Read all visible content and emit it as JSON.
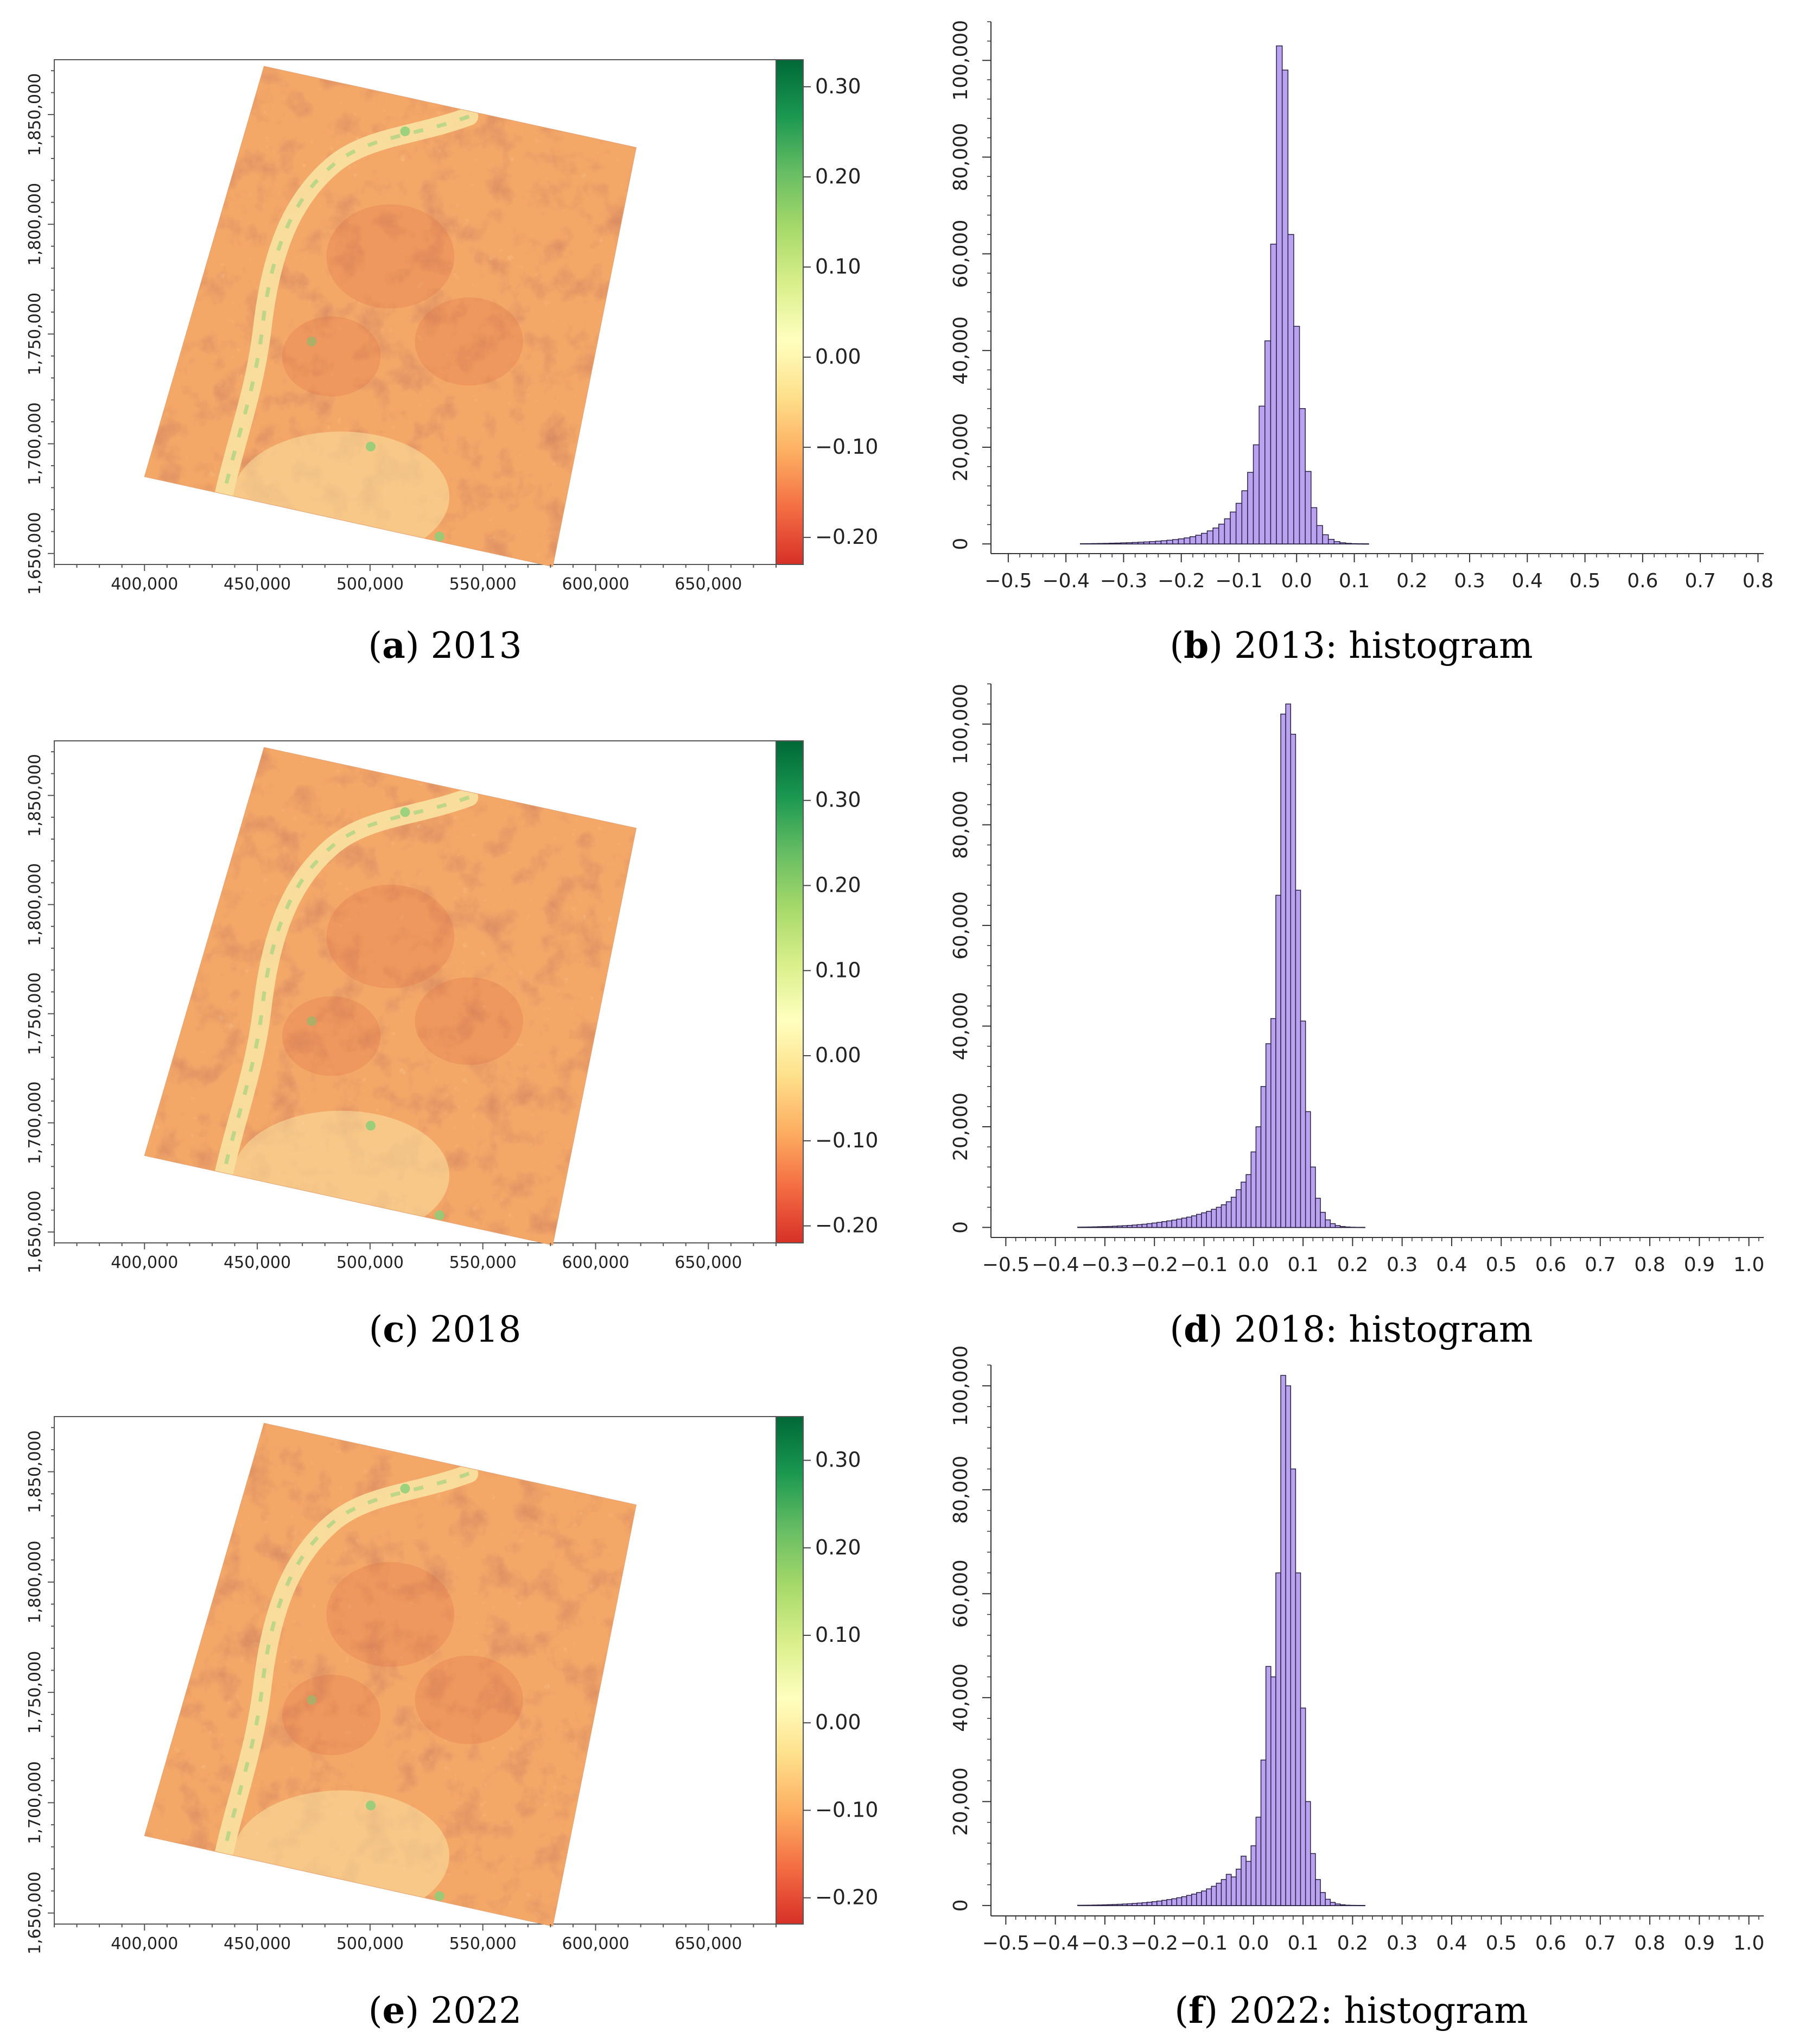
{
  "figure": {
    "panels": [
      {
        "id": "a",
        "kind": "map",
        "label": "a",
        "caption": "2013",
        "colorbar": {
          "ticks": [
            "0.30",
            "0.20",
            "0.10",
            "0.00",
            "−0.10",
            "−0.20"
          ],
          "tick_values": [
            0.3,
            0.2,
            0.1,
            0.0,
            -0.1,
            -0.2
          ],
          "range": [
            -0.23,
            0.33
          ]
        },
        "x_ticks": [
          "400,000",
          "450,000",
          "500,000",
          "550,000",
          "600,000",
          "650,000"
        ],
        "y_ticks": [
          "1,650,000",
          "1,700,000",
          "1,750,000",
          "1,800,000",
          "1,850,000"
        ]
      },
      {
        "id": "b",
        "kind": "histogram",
        "label": "b",
        "caption": "2013: histogram",
        "x_ticks": [
          "−0.5",
          "−0.4",
          "−0.3",
          "−0.2",
          "−0.1",
          "0.0",
          "0.1",
          "0.2",
          "0.3",
          "0.4",
          "0.5",
          "0.6",
          "0.7",
          "0.8"
        ],
        "y_ticks": [
          "0",
          "20,000",
          "40,000",
          "60,000",
          "80,000",
          "100,000"
        ]
      },
      {
        "id": "c",
        "kind": "map",
        "label": "c",
        "caption": "2018",
        "colorbar": {
          "ticks": [
            "0.30",
            "0.20",
            "0.10",
            "0.00",
            "−0.10",
            "−0.20"
          ],
          "tick_values": [
            0.3,
            0.2,
            0.1,
            0.0,
            -0.1,
            -0.2
          ],
          "range": [
            -0.22,
            0.37
          ]
        },
        "x_ticks": [
          "400,000",
          "450,000",
          "500,000",
          "550,000",
          "600,000",
          "650,000"
        ],
        "y_ticks": [
          "1,650,000",
          "1,700,000",
          "1,750,000",
          "1,800,000",
          "1,850,000"
        ]
      },
      {
        "id": "d",
        "kind": "histogram",
        "label": "d",
        "caption": "2018: histogram",
        "x_ticks": [
          "−0.5",
          "−0.4",
          "−0.3",
          "−0.2",
          "−0.1",
          "0.0",
          "0.1",
          "0.2",
          "0.3",
          "0.4",
          "0.5",
          "0.6",
          "0.7",
          "0.8",
          "0.9",
          "1.0"
        ],
        "y_ticks": [
          "0",
          "20,000",
          "40,000",
          "60,000",
          "80,000",
          "100,000"
        ]
      },
      {
        "id": "e",
        "kind": "map",
        "label": "e",
        "caption": "2022",
        "colorbar": {
          "ticks": [
            "0.30",
            "0.20",
            "0.10",
            "0.00",
            "−0.10",
            "−0.20"
          ],
          "tick_values": [
            0.3,
            0.2,
            0.1,
            0.0,
            -0.1,
            -0.2
          ],
          "range": [
            -0.23,
            0.35
          ]
        },
        "x_ticks": [
          "400,000",
          "450,000",
          "500,000",
          "550,000",
          "600,000",
          "650,000"
        ],
        "y_ticks": [
          "1,650,000",
          "1,700,000",
          "1,750,000",
          "1,800,000",
          "1,850,000"
        ]
      },
      {
        "id": "f",
        "kind": "histogram",
        "label": "f",
        "caption": "2022: histogram",
        "x_ticks": [
          "−0.5",
          "−0.4",
          "−0.3",
          "−0.2",
          "−0.1",
          "0.0",
          "0.1",
          "0.2",
          "0.3",
          "0.4",
          "0.5",
          "0.6",
          "0.7",
          "0.8",
          "0.9",
          "1.0"
        ],
        "y_ticks": [
          "0",
          "20,000",
          "40,000",
          "60,000",
          "80,000",
          "100,000"
        ]
      }
    ]
  },
  "colors": {
    "histogram_fill": "#b9a3f0",
    "histogram_stroke": "#2a2145",
    "ramp": [
      "#d73027",
      "#f46d43",
      "#fdae61",
      "#fee08b",
      "#ffffbf",
      "#d9ef8b",
      "#a6d96a",
      "#66bd63",
      "#1a9850",
      "#006837"
    ],
    "raster_base": "#f4a868",
    "raster_dark": "#dd6a44",
    "raster_light": "#f9e2a2",
    "raster_green": "#8ccf78"
  },
  "chart_data": [
    {
      "panel": "a",
      "type": "heatmap",
      "title": "2013",
      "xlabel": "",
      "ylabel": "",
      "x_ticks": [
        400000,
        450000,
        500000,
        550000,
        600000,
        650000
      ],
      "xlim": [
        360000,
        680000
      ],
      "y_ticks": [
        1650000,
        1700000,
        1750000,
        1800000,
        1850000
      ],
      "ylim": [
        1645000,
        1875000
      ],
      "colorbar_range": [
        -0.23,
        0.33
      ],
      "colorbar_ticks": [
        -0.2,
        -0.1,
        0.0,
        0.1,
        0.2,
        0.3
      ],
      "footprint_corners": [
        [
          400000,
          1685000
        ],
        [
          453000,
          1872000
        ],
        [
          618000,
          1835000
        ],
        [
          581000,
          1644000
        ]
      ]
    },
    {
      "panel": "b",
      "type": "bar",
      "title": "2013: histogram",
      "xlabel": "",
      "ylabel": "",
      "xlim": [
        -0.53,
        0.81
      ],
      "ylim": [
        -2000,
        108000
      ],
      "bin_width": 0.01,
      "x": [
        -0.37,
        -0.36,
        -0.35,
        -0.34,
        -0.33,
        -0.32,
        -0.31,
        -0.3,
        -0.29,
        -0.28,
        -0.27,
        -0.26,
        -0.25,
        -0.24,
        -0.23,
        -0.22,
        -0.21,
        -0.2,
        -0.19,
        -0.18,
        -0.17,
        -0.16,
        -0.15,
        -0.14,
        -0.13,
        -0.12,
        -0.11,
        -0.1,
        -0.09,
        -0.08,
        -0.07,
        -0.06,
        -0.05,
        -0.04,
        -0.03,
        -0.02,
        -0.01,
        0.0,
        0.01,
        0.02,
        0.03,
        0.04,
        0.05,
        0.06,
        0.07,
        0.08,
        0.09,
        0.1,
        0.11,
        0.12
      ],
      "values": [
        50,
        60,
        80,
        100,
        120,
        150,
        180,
        220,
        260,
        310,
        360,
        420,
        490,
        570,
        660,
        770,
        900,
        1050,
        1250,
        1500,
        1800,
        2200,
        2700,
        3300,
        4100,
        5200,
        6600,
        8400,
        11000,
        14800,
        20500,
        28500,
        42000,
        62000,
        103000,
        98000,
        64000,
        45000,
        28000,
        15000,
        7500,
        3800,
        1900,
        950,
        480,
        240,
        120,
        60,
        30,
        10
      ]
    },
    {
      "panel": "c",
      "type": "heatmap",
      "title": "2018",
      "xlabel": "",
      "ylabel": "",
      "x_ticks": [
        400000,
        450000,
        500000,
        550000,
        600000,
        650000
      ],
      "xlim": [
        360000,
        680000
      ],
      "y_ticks": [
        1650000,
        1700000,
        1750000,
        1800000,
        1850000
      ],
      "ylim": [
        1645000,
        1875000
      ],
      "colorbar_range": [
        -0.22,
        0.37
      ],
      "colorbar_ticks": [
        -0.2,
        -0.1,
        0.0,
        0.1,
        0.2,
        0.3
      ],
      "footprint_corners": [
        [
          400000,
          1685000
        ],
        [
          453000,
          1872000
        ],
        [
          618000,
          1835000
        ],
        [
          581000,
          1644000
        ]
      ]
    },
    {
      "panel": "d",
      "type": "bar",
      "title": "2018: histogram",
      "xlabel": "",
      "ylabel": "",
      "xlim": [
        -0.53,
        1.03
      ],
      "ylim": [
        -2000,
        108000
      ],
      "bin_width": 0.01,
      "x": [
        -0.35,
        -0.34,
        -0.33,
        -0.32,
        -0.31,
        -0.3,
        -0.29,
        -0.28,
        -0.27,
        -0.26,
        -0.25,
        -0.24,
        -0.23,
        -0.22,
        -0.21,
        -0.2,
        -0.19,
        -0.18,
        -0.17,
        -0.16,
        -0.15,
        -0.14,
        -0.13,
        -0.12,
        -0.11,
        -0.1,
        -0.09,
        -0.08,
        -0.07,
        -0.06,
        -0.05,
        -0.04,
        -0.03,
        -0.02,
        -0.01,
        0.0,
        0.01,
        0.02,
        0.03,
        0.04,
        0.05,
        0.06,
        0.07,
        0.08,
        0.09,
        0.1,
        0.11,
        0.12,
        0.13,
        0.14,
        0.15,
        0.16,
        0.17,
        0.18,
        0.19,
        0.2,
        0.21,
        0.22
      ],
      "values": [
        60,
        70,
        90,
        110,
        140,
        170,
        200,
        240,
        290,
        340,
        400,
        470,
        550,
        640,
        750,
        870,
        1000,
        1150,
        1300,
        1450,
        1650,
        1850,
        2050,
        2300,
        2600,
        2900,
        3200,
        3600,
        4000,
        4500,
        5100,
        6000,
        7500,
        9000,
        10500,
        15000,
        20000,
        28000,
        36500,
        41500,
        66000,
        102000,
        104000,
        98000,
        67000,
        41000,
        23000,
        12000,
        5800,
        3000,
        1500,
        750,
        370,
        180,
        90,
        40,
        20,
        10
      ]
    },
    {
      "panel": "e",
      "type": "heatmap",
      "title": "2022",
      "xlabel": "",
      "ylabel": "",
      "x_ticks": [
        400000,
        450000,
        500000,
        550000,
        600000,
        650000
      ],
      "xlim": [
        360000,
        680000
      ],
      "y_ticks": [
        1650000,
        1700000,
        1750000,
        1800000,
        1850000
      ],
      "ylim": [
        1645000,
        1875000
      ],
      "colorbar_range": [
        -0.23,
        0.35
      ],
      "colorbar_ticks": [
        -0.2,
        -0.1,
        0.0,
        0.1,
        0.2,
        0.3
      ],
      "footprint_corners": [
        [
          400000,
          1685000
        ],
        [
          453000,
          1872000
        ],
        [
          618000,
          1835000
        ],
        [
          581000,
          1644000
        ]
      ]
    },
    {
      "panel": "f",
      "type": "bar",
      "title": "2022: histogram",
      "xlabel": "",
      "ylabel": "",
      "xlim": [
        -0.53,
        1.03
      ],
      "ylim": [
        -2000,
        104000
      ],
      "bin_width": 0.01,
      "x": [
        -0.35,
        -0.34,
        -0.33,
        -0.32,
        -0.31,
        -0.3,
        -0.29,
        -0.28,
        -0.27,
        -0.26,
        -0.25,
        -0.24,
        -0.23,
        -0.22,
        -0.21,
        -0.2,
        -0.19,
        -0.18,
        -0.17,
        -0.16,
        -0.15,
        -0.14,
        -0.13,
        -0.12,
        -0.11,
        -0.1,
        -0.09,
        -0.08,
        -0.07,
        -0.06,
        -0.05,
        -0.04,
        -0.03,
        -0.02,
        -0.01,
        0.0,
        0.01,
        0.02,
        0.03,
        0.04,
        0.05,
        0.06,
        0.07,
        0.08,
        0.09,
        0.1,
        0.11,
        0.12,
        0.13,
        0.14,
        0.15,
        0.16,
        0.17,
        0.18,
        0.19,
        0.2,
        0.21,
        0.22
      ],
      "values": [
        50,
        60,
        70,
        90,
        110,
        140,
        170,
        200,
        240,
        290,
        340,
        400,
        470,
        550,
        640,
        740,
        860,
        1000,
        1150,
        1300,
        1500,
        1700,
        1950,
        2200,
        2500,
        2800,
        3200,
        3700,
        4300,
        5000,
        6000,
        5500,
        7000,
        9500,
        8500,
        11500,
        17000,
        28000,
        46000,
        44000,
        64000,
        102000,
        100000,
        84000,
        64000,
        38000,
        20000,
        10000,
        5000,
        2500,
        1200,
        600,
        300,
        150,
        70,
        30,
        15,
        5
      ]
    }
  ]
}
